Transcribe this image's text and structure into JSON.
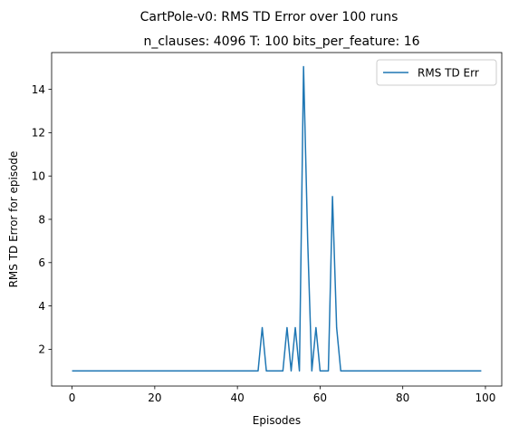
{
  "chart_data": {
    "type": "line",
    "suptitle": "CartPole-v0: RMS TD Error over 100 runs",
    "title": "n_clauses: 4096 T: 100 bits_per_feature: 16",
    "xlabel": "Episodes",
    "ylabel": "RMS TD Error for episode",
    "xlim": [
      -4.95,
      103.95
    ],
    "ylim": [
      0.3,
      15.7
    ],
    "xticks": [
      0,
      20,
      40,
      60,
      80,
      100
    ],
    "yticks": [
      2,
      4,
      6,
      8,
      10,
      12,
      14
    ],
    "legend": {
      "position": "top-right",
      "entries": [
        "RMS TD Err"
      ]
    },
    "series": [
      {
        "name": "RMS TD Err",
        "color": "#1f77b4",
        "x": [
          0,
          1,
          2,
          3,
          4,
          5,
          6,
          7,
          8,
          9,
          10,
          11,
          12,
          13,
          14,
          15,
          16,
          17,
          18,
          19,
          20,
          21,
          22,
          23,
          24,
          25,
          26,
          27,
          28,
          29,
          30,
          31,
          32,
          33,
          34,
          35,
          36,
          37,
          38,
          39,
          40,
          41,
          42,
          43,
          44,
          45,
          46,
          47,
          48,
          49,
          50,
          51,
          52,
          53,
          54,
          55,
          56,
          57,
          58,
          59,
          60,
          61,
          62,
          63,
          64,
          65,
          66,
          67,
          68,
          69,
          70,
          71,
          72,
          73,
          74,
          75,
          76,
          77,
          78,
          79,
          80,
          81,
          82,
          83,
          84,
          85,
          86,
          87,
          88,
          89,
          90,
          91,
          92,
          93,
          94,
          95,
          96,
          97,
          98,
          99
        ],
        "values": [
          1,
          1,
          1,
          1,
          1,
          1,
          1,
          1,
          1,
          1,
          1,
          1,
          1,
          1,
          1,
          1,
          1,
          1,
          1,
          1,
          1,
          1,
          1,
          1,
          1,
          1,
          1,
          1,
          1,
          1,
          1,
          1,
          1,
          1,
          1,
          1,
          1,
          1,
          1,
          1,
          1,
          1,
          1,
          1,
          1,
          1,
          3,
          1,
          1,
          1,
          1,
          1,
          3,
          1,
          3,
          1,
          15.05,
          7,
          1,
          3,
          1,
          1,
          1,
          9.05,
          3,
          1,
          1,
          1,
          1,
          1,
          1,
          1,
          1,
          1,
          1,
          1,
          1,
          1,
          1,
          1,
          1,
          1,
          1,
          1,
          1,
          1,
          1,
          1,
          1,
          1,
          1,
          1,
          1,
          1,
          1,
          1,
          1,
          1,
          1,
          1
        ]
      }
    ]
  }
}
